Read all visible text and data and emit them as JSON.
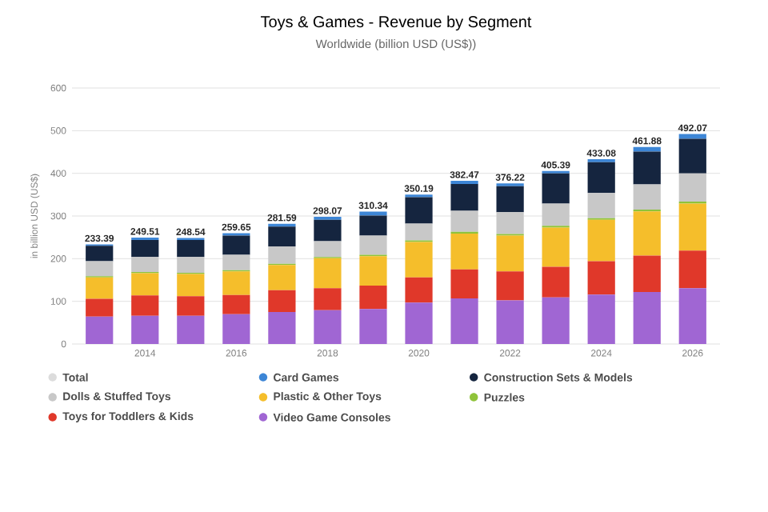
{
  "chart_data": {
    "type": "bar",
    "title": "Toys & Games - Revenue by Segment",
    "subtitle": "Worldwide (billion USD (US$))",
    "ylabel": "in billion USD (US$)",
    "categories": [
      null,
      "2014",
      null,
      "2016",
      null,
      "2018",
      null,
      "2020",
      null,
      "2022",
      null,
      "2024",
      null,
      "2026"
    ],
    "stacked": true,
    "ylim": [
      0,
      600
    ],
    "yticks": [
      0,
      100,
      200,
      300,
      400,
      500,
      600
    ],
    "grid": "y",
    "legend": "bottom",
    "series": [
      {
        "name": "Total",
        "color": "#dcdcdc",
        "values": [
          null,
          null,
          null,
          null,
          null,
          null,
          null,
          null,
          null,
          null,
          null,
          null,
          null,
          null
        ]
      },
      {
        "name": "Video Game Consoles",
        "color": "#a066d3",
        "values": [
          64,
          66,
          66,
          70,
          75,
          79,
          82,
          97,
          107,
          102,
          109,
          116,
          122,
          131
        ]
      },
      {
        "name": "Toys for Toddlers & Kids",
        "color": "#e0382a",
        "values": [
          42,
          48,
          46,
          45,
          51,
          52,
          55,
          59,
          68,
          68,
          72,
          78,
          85,
          88
        ]
      },
      {
        "name": "Plastic & Other Toys",
        "color": "#f5be2b",
        "values": [
          50,
          52,
          52,
          55,
          59,
          70,
          69,
          83,
          84,
          84,
          92,
          97,
          104,
          110
        ]
      },
      {
        "name": "Puzzles",
        "color": "#8fc33a",
        "values": [
          3,
          3,
          3,
          3,
          3,
          3,
          3,
          4,
          4,
          4,
          4,
          4,
          4,
          5
        ]
      },
      {
        "name": "Dolls & Stuffed Toys",
        "color": "#c8c8c8",
        "values": [
          35,
          35,
          37,
          36,
          41,
          37,
          45,
          39,
          49,
          51,
          52,
          59,
          59,
          66
        ]
      },
      {
        "name": "Construction Sets & Models",
        "color": "#15253f",
        "values": [
          36,
          40,
          40,
          45,
          46,
          50,
          47,
          62,
          63,
          61,
          71,
          72,
          77,
          81
        ]
      },
      {
        "name": "Card Games",
        "color": "#3d86d6",
        "values": [
          3.39,
          5.51,
          4.54,
          5.65,
          6.59,
          7.07,
          9.34,
          6.19,
          7.47,
          6.22,
          5.39,
          7.08,
          10.88,
          11.07
        ]
      }
    ],
    "totals": [
      "233.39",
      "249.51",
      "248.54",
      "259.65",
      "281.59",
      "298.07",
      "310.34",
      "350.19",
      "382.47",
      "376.22",
      "405.39",
      "433.08",
      "461.88",
      "492.07"
    ]
  }
}
